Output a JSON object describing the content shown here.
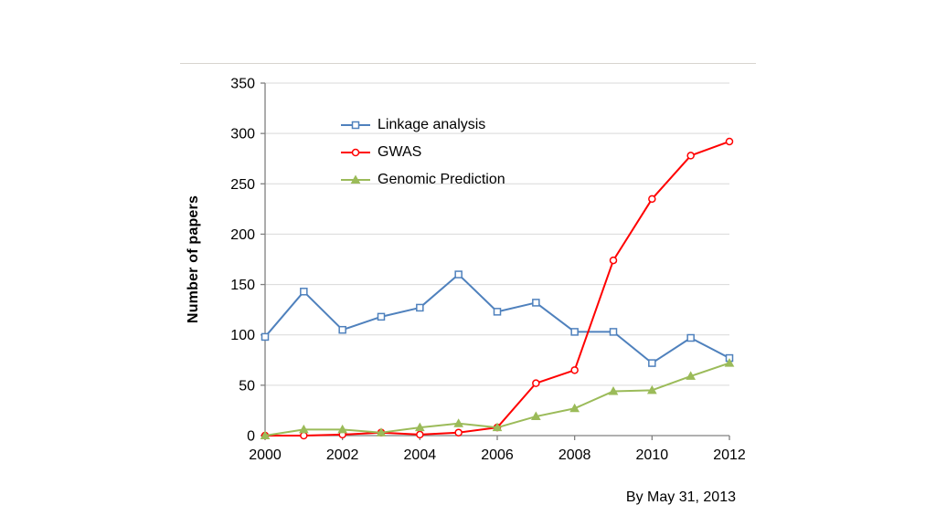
{
  "caption": "By May 31, 2013",
  "chart_data": {
    "type": "line",
    "title": "",
    "xlabel": "",
    "ylabel": "Number of papers",
    "x": [
      2000,
      2001,
      2002,
      2003,
      2004,
      2005,
      2006,
      2007,
      2008,
      2009,
      2010,
      2011,
      2012
    ],
    "x_tick_labels": [
      "2000",
      "2002",
      "2004",
      "2006",
      "2008",
      "2010",
      "2012"
    ],
    "x_tick_step": 2,
    "ylim": [
      0,
      350
    ],
    "ytick_step": 50,
    "grid": true,
    "legend_position": "top-left-inside",
    "axis_color": "#808080",
    "grid_color": "#d9d9d9",
    "series": [
      {
        "name": "Linkage analysis",
        "color": "#4f81bd",
        "marker": "square",
        "values": [
          98,
          143,
          105,
          118,
          127,
          160,
          123,
          132,
          103,
          103,
          72,
          97,
          77
        ]
      },
      {
        "name": "GWAS",
        "color": "#ff0000",
        "marker": "circle",
        "values": [
          0,
          0,
          1,
          3,
          1,
          3,
          8,
          52,
          65,
          174,
          235,
          278,
          292
        ]
      },
      {
        "name": "Genomic Prediction",
        "color": "#9bbb59",
        "marker": "triangle",
        "values": [
          0,
          6,
          6,
          3,
          8,
          12,
          8,
          19,
          27,
          44,
          45,
          59,
          72
        ]
      }
    ]
  }
}
